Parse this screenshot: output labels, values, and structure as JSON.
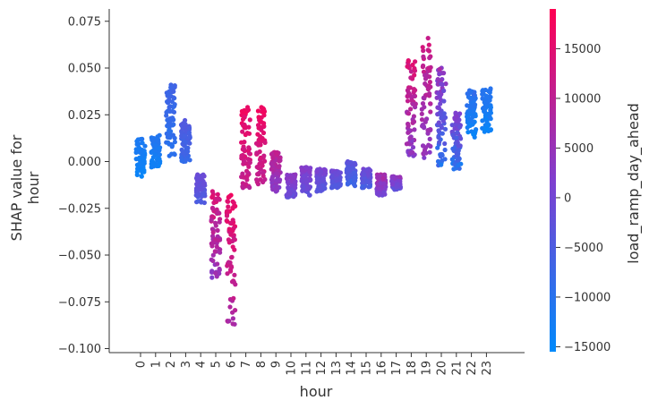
{
  "chart_data": {
    "type": "scatter",
    "title": "",
    "xlabel": "hour",
    "ylabel_lines": [
      "SHAP value for",
      "hour"
    ],
    "x_categories": [
      "0",
      "1",
      "2",
      "3",
      "4",
      "5",
      "6",
      "7",
      "8",
      "9",
      "10",
      "11",
      "12",
      "13",
      "14",
      "15",
      "16",
      "17",
      "18",
      "19",
      "20",
      "21",
      "22",
      "23"
    ],
    "ylim": [
      -0.1,
      0.08
    ],
    "y_ticks": [
      -0.1,
      -0.075,
      -0.05,
      -0.025,
      0.0,
      0.025,
      0.05,
      0.075
    ],
    "y_tick_labels": [
      "−0.100",
      "−0.075",
      "−0.050",
      "−0.025",
      "0.000",
      "0.025",
      "0.050",
      "0.075"
    ],
    "colorbar": {
      "label": "load_ramp_day_ahead",
      "range": [
        -15500,
        19000
      ],
      "ticks": [
        -15000,
        -10000,
        -5000,
        0,
        5000,
        10000,
        15000
      ],
      "tick_labels": [
        "−15000",
        "−10000",
        "−5000",
        "0",
        "5000",
        "10000",
        "15000"
      ],
      "color_low": "#008afb",
      "color_mid": "#7f3fcf",
      "color_high": "#ff0052"
    },
    "groups": [
      {
        "hour": "0",
        "shap_min": -0.008,
        "shap_max": 0.012,
        "ramp_min": -15000,
        "ramp_max": -11000
      },
      {
        "hour": "1",
        "shap_min": -0.003,
        "shap_max": 0.014,
        "ramp_min": -14000,
        "ramp_max": -10000
      },
      {
        "hour": "2",
        "shap_min": 0.003,
        "shap_max": 0.041,
        "ramp_min": -11000,
        "ramp_max": -6000
      },
      {
        "hour": "3",
        "shap_min": 0.0,
        "shap_max": 0.022,
        "ramp_min": -9000,
        "ramp_max": -3000
      },
      {
        "hour": "4",
        "shap_min": -0.022,
        "shap_max": -0.007,
        "ramp_min": -6000,
        "ramp_max": 0
      },
      {
        "hour": "5",
        "shap_min": -0.062,
        "shap_max": -0.016,
        "ramp_min": 2000,
        "ramp_max": 16000
      },
      {
        "hour": "6",
        "shap_min": -0.087,
        "shap_max": -0.018,
        "ramp_min": 6000,
        "ramp_max": 18000
      },
      {
        "hour": "7",
        "shap_min": -0.014,
        "shap_max": 0.029,
        "ramp_min": 9000,
        "ramp_max": 18000
      },
      {
        "hour": "8",
        "shap_min": -0.012,
        "shap_max": 0.029,
        "ramp_min": 9000,
        "ramp_max": 18000
      },
      {
        "hour": "9",
        "shap_min": -0.016,
        "shap_max": 0.005,
        "ramp_min": 1000,
        "ramp_max": 12000
      },
      {
        "hour": "10",
        "shap_min": -0.019,
        "shap_max": -0.007,
        "ramp_min": -3000,
        "ramp_max": 5000
      },
      {
        "hour": "11",
        "shap_min": -0.018,
        "shap_max": -0.003,
        "ramp_min": -4000,
        "ramp_max": 4000
      },
      {
        "hour": "12",
        "shap_min": -0.016,
        "shap_max": -0.004,
        "ramp_min": -5000,
        "ramp_max": 2000
      },
      {
        "hour": "13",
        "shap_min": -0.014,
        "shap_max": -0.005,
        "ramp_min": -6000,
        "ramp_max": 1000
      },
      {
        "hour": "14",
        "shap_min": -0.013,
        "shap_max": 0.0,
        "ramp_min": -9000,
        "ramp_max": -1000
      },
      {
        "hour": "15",
        "shap_min": -0.014,
        "shap_max": -0.004,
        "ramp_min": -7000,
        "ramp_max": 1000
      },
      {
        "hour": "16",
        "shap_min": -0.018,
        "shap_max": -0.007,
        "ramp_min": -2000,
        "ramp_max": 9000
      },
      {
        "hour": "17",
        "shap_min": -0.015,
        "shap_max": -0.008,
        "ramp_min": -4000,
        "ramp_max": 6000
      },
      {
        "hour": "18",
        "shap_min": 0.003,
        "shap_max": 0.054,
        "ramp_min": 1000,
        "ramp_max": 16000
      },
      {
        "hour": "19",
        "shap_min": 0.002,
        "shap_max": 0.066,
        "ramp_min": 2000,
        "ramp_max": 14000
      },
      {
        "hour": "20",
        "shap_min": -0.002,
        "shap_max": 0.05,
        "ramp_min": -12000,
        "ramp_max": 8000
      },
      {
        "hour": "21",
        "shap_min": -0.004,
        "shap_max": 0.026,
        "ramp_min": -14000,
        "ramp_max": 6000
      },
      {
        "hour": "22",
        "shap_min": 0.013,
        "shap_max": 0.038,
        "ramp_min": -15000,
        "ramp_max": -8000
      },
      {
        "hour": "23",
        "shap_min": 0.016,
        "shap_max": 0.039,
        "ramp_min": -15000,
        "ramp_max": -9000
      }
    ]
  }
}
